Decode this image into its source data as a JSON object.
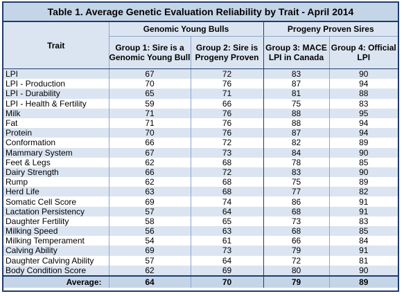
{
  "table": {
    "title": "Table 1. Average Genetic Evaluation Reliability by Trait - April 2014",
    "trait_header": "Trait",
    "group_headers": [
      "Genomic Young Bulls",
      "Progeny Proven Sires"
    ],
    "column_headers": [
      "Group 1: Sire is a Genomic Young Bull",
      "Group 2: Sire is Progeny Proven",
      "Group 3: MACE LPI in Canada",
      "Group 4: Official LPI"
    ],
    "rows": [
      {
        "trait": "LPI",
        "values": [
          "67",
          "72",
          "83",
          "90"
        ]
      },
      {
        "trait": "LPI - Production",
        "values": [
          "70",
          "76",
          "87",
          "94"
        ]
      },
      {
        "trait": "LPI - Durability",
        "values": [
          "65",
          "71",
          "81",
          "88"
        ]
      },
      {
        "trait": "LPI - Health & Fertility",
        "values": [
          "59",
          "66",
          "75",
          "83"
        ]
      },
      {
        "trait": "Milk",
        "values": [
          "71",
          "76",
          "88",
          "95"
        ]
      },
      {
        "trait": "Fat",
        "values": [
          "71",
          "76",
          "88",
          "94"
        ]
      },
      {
        "trait": "Protein",
        "values": [
          "70",
          "76",
          "87",
          "94"
        ]
      },
      {
        "trait": "Conformation",
        "values": [
          "66",
          "72",
          "82",
          "89"
        ]
      },
      {
        "trait": "Mammary System",
        "values": [
          "67",
          "73",
          "84",
          "90"
        ]
      },
      {
        "trait": "Feet & Legs",
        "values": [
          "62",
          "68",
          "78",
          "85"
        ]
      },
      {
        "trait": "Dairy Strength",
        "values": [
          "66",
          "72",
          "83",
          "90"
        ]
      },
      {
        "trait": "Rump",
        "values": [
          "62",
          "68",
          "75",
          "89"
        ]
      },
      {
        "trait": "Herd Life",
        "values": [
          "63",
          "68",
          "77",
          "82"
        ]
      },
      {
        "trait": "Somatic Cell Score",
        "values": [
          "69",
          "74",
          "86",
          "91"
        ]
      },
      {
        "trait": "Lactation Persistency",
        "values": [
          "57",
          "64",
          "68",
          "91"
        ]
      },
      {
        "trait": "Daughter Fertility",
        "values": [
          "58",
          "65",
          "73",
          "83"
        ]
      },
      {
        "trait": "Milking Speed",
        "values": [
          "56",
          "63",
          "68",
          "85"
        ]
      },
      {
        "trait": "Milking Temperament",
        "values": [
          "54",
          "61",
          "66",
          "84"
        ]
      },
      {
        "trait": "Calving Ability",
        "values": [
          "69",
          "73",
          "79",
          "91"
        ]
      },
      {
        "trait": "Daughter Calving Ability",
        "values": [
          "57",
          "64",
          "72",
          "81"
        ]
      },
      {
        "trait": "Body Condition Score",
        "values": [
          "62",
          "69",
          "80",
          "90"
        ]
      }
    ],
    "average_label": "Average:",
    "average_values": [
      "64",
      "70",
      "79",
      "89"
    ]
  },
  "colors": {
    "header_fill": "#c5d5e8",
    "stripe_fill": "#dbe5f1",
    "border": "#1f3a6b"
  }
}
